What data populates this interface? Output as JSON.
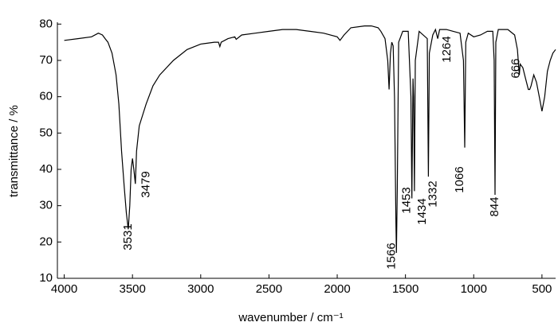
{
  "chart_data": {
    "type": "line",
    "xlabel": "wavenumber / cm⁻¹",
    "ylabel": "transmittance / %",
    "x": [
      4000,
      3900,
      3800,
      3750,
      3720,
      3700,
      3680,
      3650,
      3620,
      3600,
      3580,
      3560,
      3545,
      3531,
      3520,
      3510,
      3500,
      3490,
      3479,
      3470,
      3450,
      3400,
      3350,
      3300,
      3200,
      3100,
      3000,
      2900,
      2870,
      2860,
      2850,
      2800,
      2750,
      2740,
      2700,
      2600,
      2500,
      2400,
      2300,
      2200,
      2100,
      2000,
      1980,
      1950,
      1900,
      1800,
      1750,
      1700,
      1680,
      1650,
      1630,
      1620,
      1610,
      1600,
      1590,
      1580,
      1570,
      1566,
      1560,
      1550,
      1520,
      1480,
      1460,
      1453,
      1445,
      1440,
      1434,
      1428,
      1400,
      1340,
      1332,
      1325,
      1300,
      1280,
      1264,
      1250,
      1200,
      1150,
      1100,
      1075,
      1066,
      1058,
      1040,
      1000,
      950,
      900,
      860,
      850,
      844,
      838,
      820,
      750,
      700,
      680,
      670,
      666,
      660,
      640,
      620,
      600,
      590,
      580,
      560,
      540,
      520,
      500,
      480,
      460,
      440,
      420,
      400
    ],
    "values": [
      75.5,
      76,
      76.5,
      77.5,
      77,
      76,
      75,
      72,
      66,
      58,
      45,
      35,
      28,
      23.5,
      30,
      40,
      43,
      40,
      36,
      45,
      52,
      58,
      63,
      66,
      70,
      73,
      74.5,
      75,
      75,
      73.8,
      75,
      76,
      76.5,
      75.8,
      77,
      77.5,
      78,
      78.5,
      78.5,
      78,
      77.5,
      76.5,
      75.5,
      77,
      79,
      79.5,
      79.5,
      79,
      78,
      76,
      70,
      62,
      72,
      75,
      74,
      60,
      25,
      17,
      35,
      75,
      78,
      78,
      60,
      32,
      65,
      60,
      34,
      70,
      78,
      76,
      38,
      72,
      77,
      78.5,
      76,
      78.5,
      78.5,
      78,
      77.5,
      70,
      46,
      75,
      77.5,
      76.5,
      77,
      78,
      78,
      70,
      33,
      75,
      78.5,
      78.5,
      77,
      73,
      68,
      66,
      69,
      68,
      65,
      62,
      62,
      63,
      66,
      64,
      60,
      56,
      60,
      67,
      70,
      72,
      73
    ],
    "color": "#000000",
    "xlim": [
      4050,
      400
    ],
    "ylim": [
      10,
      80.5
    ],
    "xticks": [
      4000,
      3500,
      3000,
      2500,
      2000,
      1500,
      1000,
      500
    ],
    "yticks": [
      10,
      20,
      30,
      40,
      50,
      60,
      70,
      80
    ],
    "peak_labels": [
      3531,
      3479,
      1566,
      1453,
      1434,
      1332,
      1264,
      1066,
      844,
      666
    ]
  }
}
